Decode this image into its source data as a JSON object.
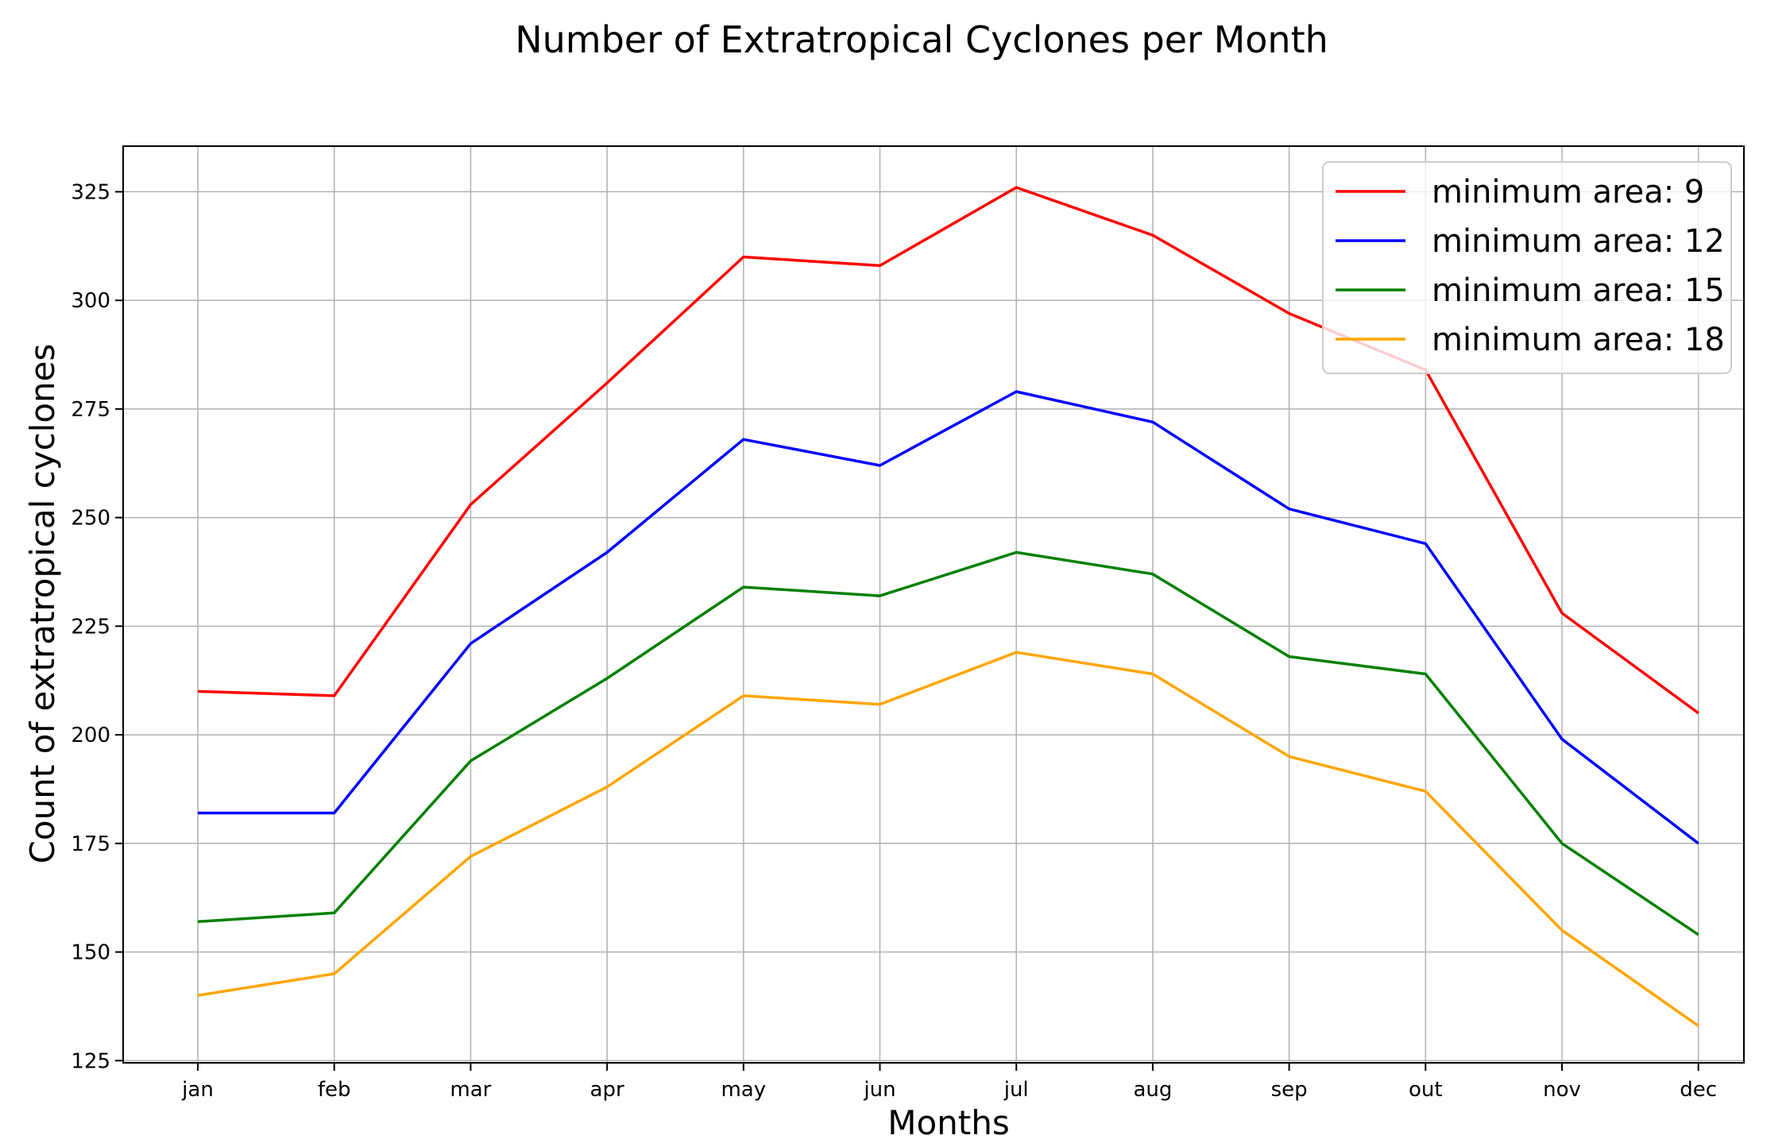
{
  "chart_data": {
    "type": "line",
    "title": "Number of Extratropical Cyclones per Month",
    "xlabel": "Months",
    "ylabel": "Count of extratropical cyclones",
    "categories": [
      "jan",
      "feb",
      "mar",
      "apr",
      "may",
      "jun",
      "jul",
      "aug",
      "sep",
      "out",
      "nov",
      "dec"
    ],
    "ylim": [
      124.5,
      335.5
    ],
    "yticks": [
      125,
      150,
      175,
      200,
      225,
      250,
      275,
      300,
      325
    ],
    "grid": true,
    "legend_position": "top-right",
    "series": [
      {
        "name": "minimum area: 9",
        "color": "#ff0000",
        "values": [
          210,
          209,
          253,
          281,
          310,
          308,
          326,
          315,
          297,
          284,
          228,
          205
        ]
      },
      {
        "name": "minimum area: 12",
        "color": "#0000ff",
        "values": [
          182,
          182,
          221,
          242,
          268,
          262,
          279,
          272,
          252,
          244,
          199,
          175
        ]
      },
      {
        "name": "minimum area: 15",
        "color": "#008000",
        "values": [
          157,
          159,
          194,
          213,
          234,
          232,
          242,
          237,
          218,
          214,
          175,
          154
        ]
      },
      {
        "name": "minimum area: 18",
        "color": "#ffa500",
        "values": [
          140,
          145,
          172,
          188,
          209,
          207,
          219,
          214,
          195,
          187,
          155,
          133
        ]
      }
    ]
  }
}
